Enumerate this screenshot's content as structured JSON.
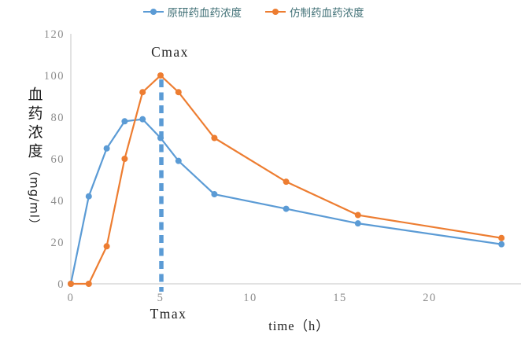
{
  "legend": {
    "items": [
      {
        "key": "original",
        "label": "原研药血药浓度",
        "color": "#5B9BD5"
      },
      {
        "key": "generic",
        "label": "仿制药血药浓度",
        "color": "#ED7D31"
      }
    ],
    "text_color": "#3f6f75"
  },
  "axis_titles": {
    "y_main": "血药浓度",
    "y_unit": "（mg/ml）",
    "x": "time（h）"
  },
  "axis_style": {
    "line_color": "#d9d9d9",
    "tick_color": "#8c8c8c"
  },
  "chart_data": {
    "type": "line",
    "x": [
      0,
      1,
      2,
      3,
      4,
      5,
      6,
      8,
      12,
      16,
      24
    ],
    "series": [
      {
        "key": "original",
        "name": "原研药血药浓度",
        "color": "#5B9BD5",
        "values": [
          0,
          42,
          65,
          78,
          79,
          70,
          59,
          43,
          36,
          29,
          19
        ]
      },
      {
        "key": "generic",
        "name": "仿制药血药浓度",
        "color": "#ED7D31",
        "values": [
          0,
          0,
          18,
          60,
          92,
          100,
          92,
          70,
          49,
          33,
          22
        ]
      }
    ],
    "xlabel": "time（h）",
    "ylabel": "血药浓度（mg/ml）",
    "xlim": [
      0,
      25
    ],
    "ylim": [
      0,
      120
    ],
    "x_ticks": [
      0,
      5,
      10,
      15,
      20
    ],
    "y_ticks": [
      0,
      20,
      40,
      60,
      80,
      100,
      120
    ],
    "grid": false,
    "legend_position": "top-center",
    "annotations": {
      "cmax_label": "Cmax",
      "tmax_label": "Tmax",
      "tmax_line_x": 5,
      "dashed_line_color": "#5B9BD5"
    }
  }
}
